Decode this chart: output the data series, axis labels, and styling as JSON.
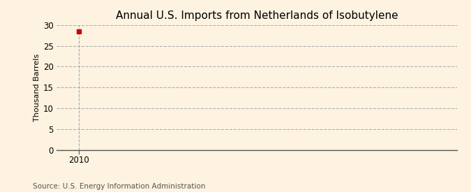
{
  "title": "Annual U.S. Imports from Netherlands of Isobutylene",
  "ylabel": "Thousand Barrels",
  "source_text": "Source: U.S. Energy Information Administration",
  "x_data": [
    2010
  ],
  "y_data": [
    28.5
  ],
  "marker_color": "#cc0000",
  "marker_size": 4,
  "ylim": [
    0,
    30
  ],
  "yticks": [
    0,
    5,
    10,
    15,
    20,
    25,
    30
  ],
  "xlim": [
    2009.3,
    2022
  ],
  "xticks": [
    2010
  ],
  "background_color": "#fdf3e0",
  "plot_bg_color": "#fdf3e0",
  "grid_color": "#b0b0b0",
  "title_fontsize": 11,
  "label_fontsize": 8,
  "tick_fontsize": 8.5,
  "source_fontsize": 7.5
}
